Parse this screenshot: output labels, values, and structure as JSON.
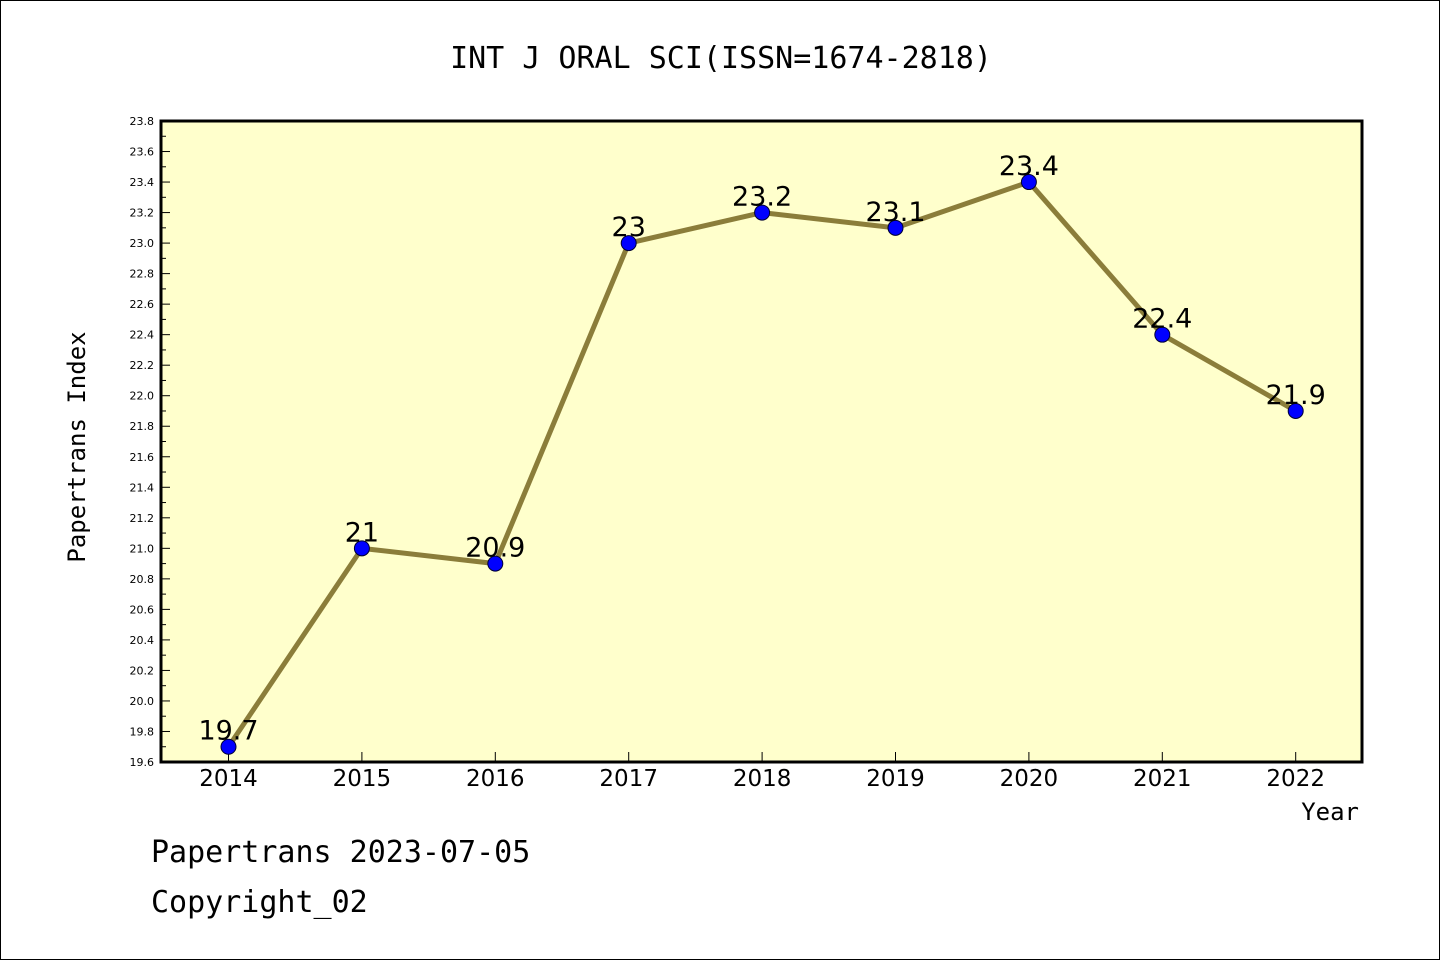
{
  "colors": {
    "plot_background": "#ffffcc",
    "line": "#8b7d3a",
    "marker": "#0000ff",
    "frame": "#000000"
  },
  "chart_data": {
    "type": "line",
    "title": "INT J ORAL SCI(ISSN=1674-2818)",
    "xlabel": "Year",
    "ylabel": "Papertrans Index",
    "categories": [
      "2014",
      "2015",
      "2016",
      "2017",
      "2018",
      "2019",
      "2020",
      "2021",
      "2022"
    ],
    "values": [
      19.7,
      21,
      20.9,
      23,
      23.2,
      23.1,
      23.4,
      22.4,
      21.9
    ],
    "data_labels": [
      "19.7",
      "21",
      "20.9",
      "23",
      "23.2",
      "23.1",
      "23.4",
      "22.4",
      "21.9"
    ],
    "ylim": [
      19.6,
      23.8
    ],
    "yticks": [
      "19.6",
      "19.8",
      "20.0",
      "20.2",
      "20.4",
      "20.6",
      "20.8",
      "21.0",
      "21.2",
      "21.4",
      "21.6",
      "21.8",
      "22.0",
      "22.2",
      "22.4",
      "22.6",
      "22.8",
      "23.0",
      "23.2",
      "23.4",
      "23.6",
      "23.8"
    ],
    "grid": false,
    "legend": "none"
  },
  "footer": {
    "date_line": "Papertrans 2023-07-05",
    "copyright_line": "Copyright_02"
  }
}
